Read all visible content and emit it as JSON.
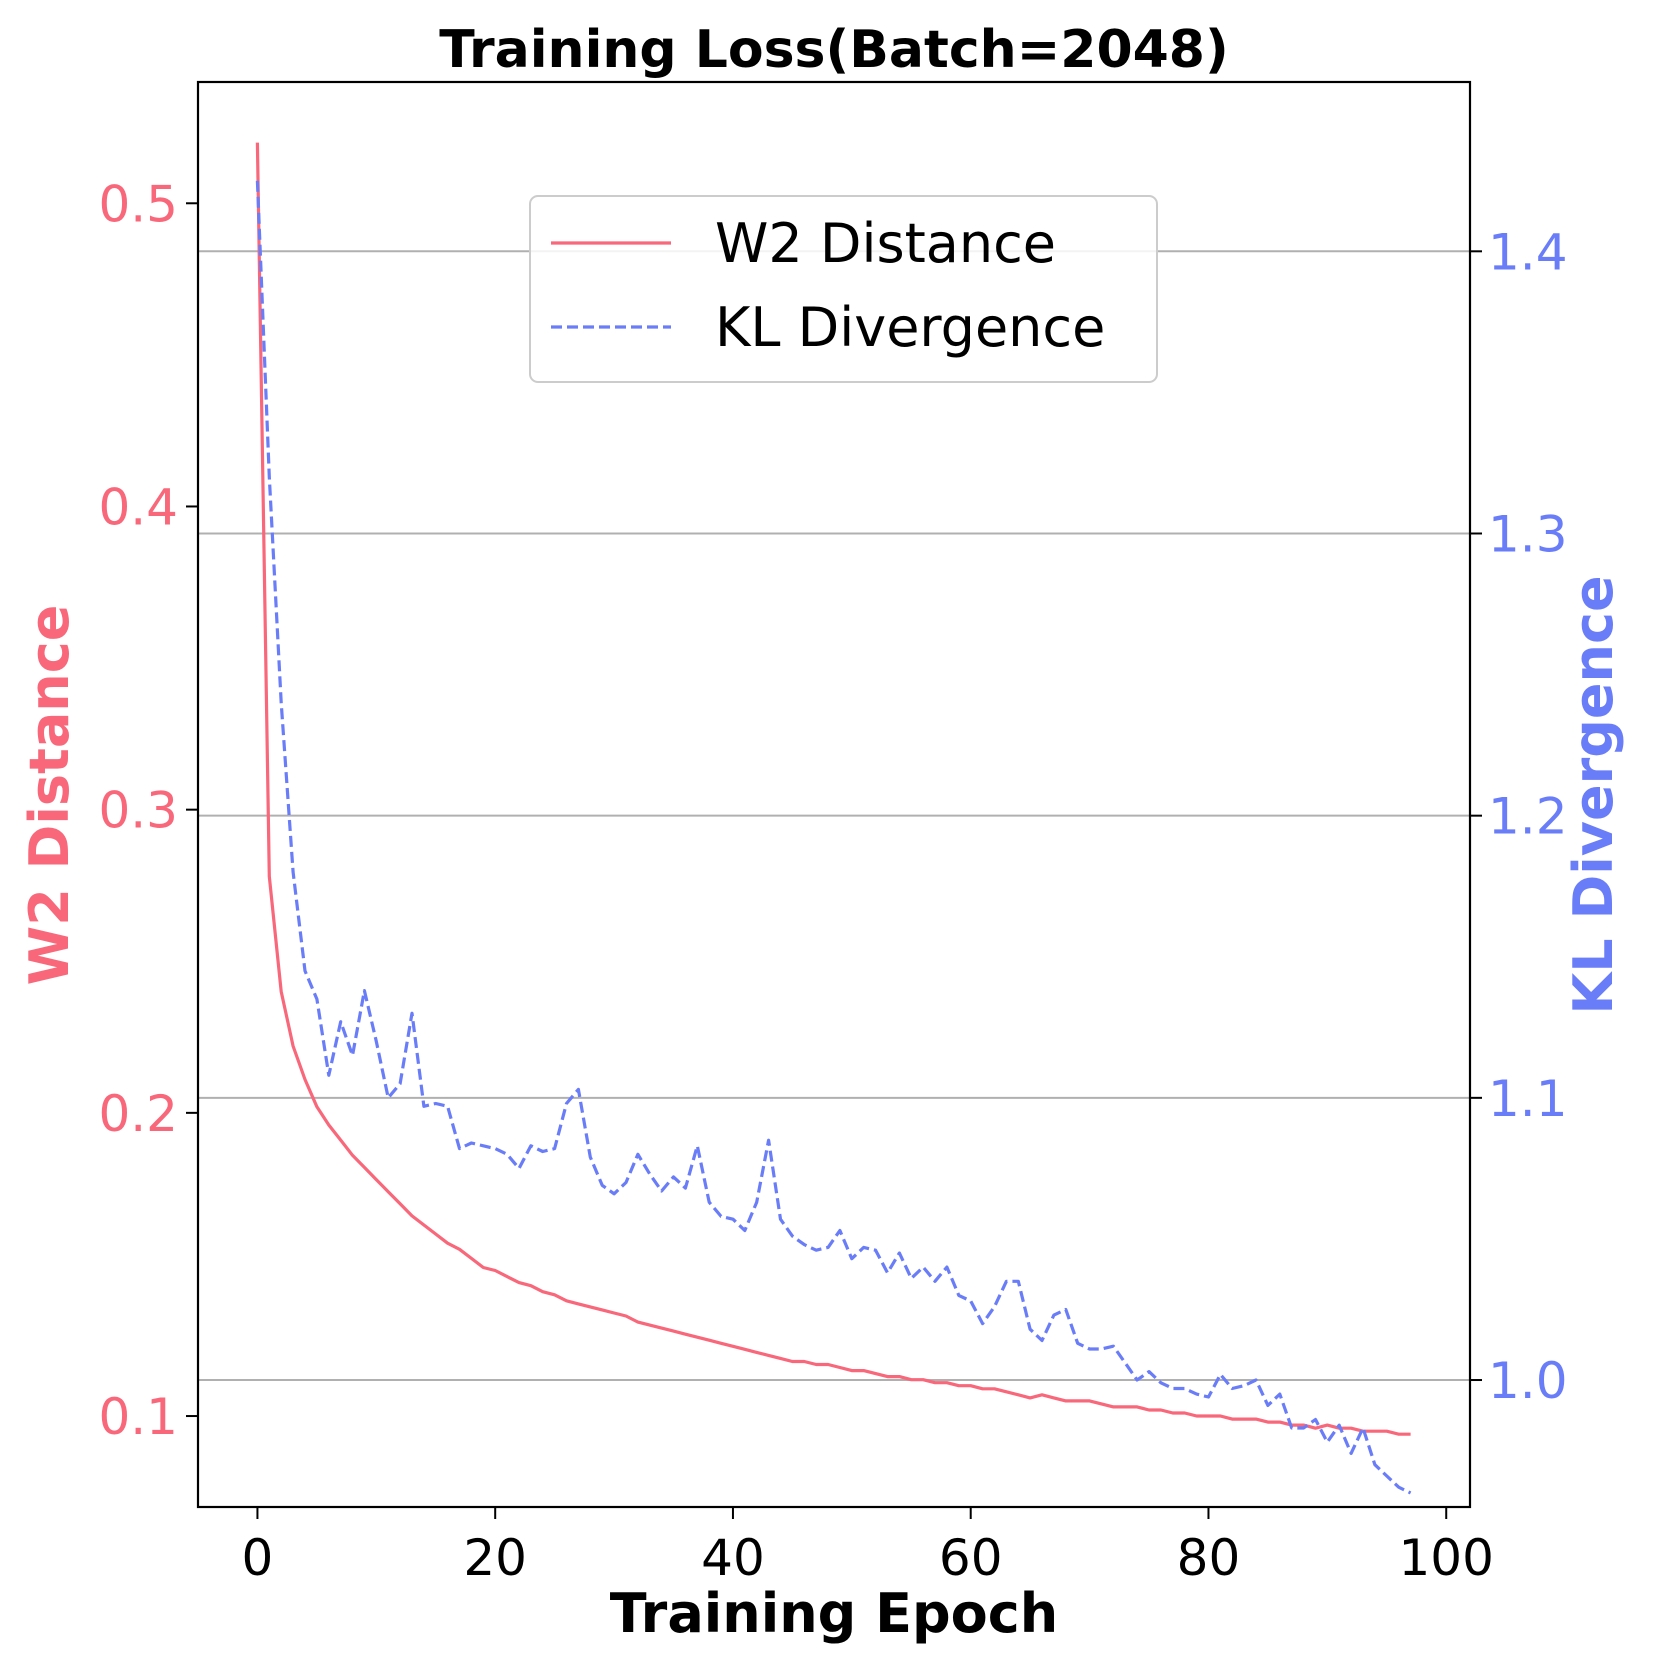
{
  "chart_data": {
    "type": "line",
    "title": "Training Loss(Batch=2048)",
    "xlabel": "Training Epoch",
    "ylabel_left": "W2 Distance",
    "ylabel_right": "KL Divergence",
    "xlim": [
      -5,
      102
    ],
    "ylim_left": [
      0.07,
      0.54
    ],
    "ylim_right": [
      0.955,
      1.46
    ],
    "x_ticks": [
      0,
      20,
      40,
      60,
      80,
      100
    ],
    "y_ticks_left": [
      0.1,
      0.2,
      0.3,
      0.4,
      0.5
    ],
    "y_ticks_right": [
      1.0,
      1.1,
      1.2,
      1.3,
      1.4
    ],
    "grid": "horizontal (right axis ticks)",
    "legend_position": "upper center",
    "colors": {
      "w2": "#f8687a",
      "kl": "#6a7df8",
      "grid": "#b0b0b0"
    },
    "series": [
      {
        "name": "W2 Distance",
        "axis": "left",
        "style": "solid",
        "x": [
          0,
          1,
          2,
          3,
          4,
          5,
          6,
          7,
          8,
          9,
          10,
          11,
          12,
          13,
          14,
          15,
          16,
          17,
          18,
          19,
          20,
          21,
          22,
          23,
          24,
          25,
          26,
          27,
          28,
          29,
          30,
          31,
          32,
          33,
          34,
          35,
          36,
          37,
          38,
          39,
          40,
          41,
          42,
          43,
          44,
          45,
          46,
          47,
          48,
          49,
          50,
          51,
          52,
          53,
          54,
          55,
          56,
          57,
          58,
          59,
          60,
          61,
          62,
          63,
          64,
          65,
          66,
          67,
          68,
          69,
          70,
          71,
          72,
          73,
          74,
          75,
          76,
          77,
          78,
          79,
          80,
          81,
          82,
          83,
          84,
          85,
          86,
          87,
          88,
          89,
          90,
          91,
          92,
          93,
          94,
          95,
          96,
          97
        ],
        "values": [
          0.52,
          0.278,
          0.24,
          0.222,
          0.211,
          0.202,
          0.196,
          0.191,
          0.186,
          0.182,
          0.178,
          0.174,
          0.17,
          0.166,
          0.163,
          0.16,
          0.157,
          0.155,
          0.152,
          0.149,
          0.148,
          0.146,
          0.144,
          0.143,
          0.141,
          0.14,
          0.138,
          0.137,
          0.136,
          0.135,
          0.134,
          0.133,
          0.131,
          0.13,
          0.129,
          0.128,
          0.127,
          0.126,
          0.125,
          0.124,
          0.123,
          0.122,
          0.121,
          0.12,
          0.119,
          0.118,
          0.118,
          0.117,
          0.117,
          0.116,
          0.115,
          0.115,
          0.114,
          0.113,
          0.113,
          0.112,
          0.112,
          0.111,
          0.111,
          0.11,
          0.11,
          0.109,
          0.109,
          0.108,
          0.107,
          0.106,
          0.107,
          0.106,
          0.105,
          0.105,
          0.105,
          0.104,
          0.103,
          0.103,
          0.103,
          0.102,
          0.102,
          0.101,
          0.101,
          0.1,
          0.1,
          0.1,
          0.099,
          0.099,
          0.099,
          0.098,
          0.098,
          0.097,
          0.097,
          0.096,
          0.097,
          0.096,
          0.096,
          0.095,
          0.095,
          0.095,
          0.094,
          0.094
        ]
      },
      {
        "name": "KL Divergence",
        "axis": "right",
        "style": "dashed",
        "x": [
          0,
          1,
          2,
          3,
          4,
          5,
          6,
          7,
          8,
          9,
          10,
          11,
          12,
          13,
          14,
          15,
          16,
          17,
          18,
          19,
          20,
          21,
          22,
          23,
          24,
          25,
          26,
          27,
          28,
          29,
          30,
          31,
          32,
          33,
          34,
          35,
          36,
          37,
          38,
          39,
          40,
          41,
          42,
          43,
          44,
          45,
          46,
          47,
          48,
          49,
          50,
          51,
          52,
          53,
          54,
          55,
          56,
          57,
          58,
          59,
          60,
          61,
          62,
          63,
          64,
          65,
          66,
          67,
          68,
          69,
          70,
          71,
          72,
          73,
          74,
          75,
          76,
          77,
          78,
          79,
          80,
          81,
          82,
          83,
          84,
          85,
          86,
          87,
          88,
          89,
          90,
          91,
          92,
          93,
          94,
          95,
          96,
          97
        ],
        "values": [
          1.425,
          1.32,
          1.24,
          1.18,
          1.145,
          1.135,
          1.108,
          1.127,
          1.115,
          1.138,
          1.12,
          1.1,
          1.105,
          1.13,
          1.097,
          1.098,
          1.097,
          1.082,
          1.084,
          1.083,
          1.082,
          1.08,
          1.075,
          1.083,
          1.081,
          1.082,
          1.098,
          1.103,
          1.079,
          1.069,
          1.066,
          1.07,
          1.08,
          1.073,
          1.067,
          1.072,
          1.068,
          1.083,
          1.063,
          1.058,
          1.057,
          1.053,
          1.063,
          1.085,
          1.057,
          1.051,
          1.048,
          1.046,
          1.047,
          1.053,
          1.043,
          1.047,
          1.046,
          1.038,
          1.045,
          1.036,
          1.04,
          1.035,
          1.04,
          1.03,
          1.028,
          1.02,
          1.026,
          1.035,
          1.035,
          1.018,
          1.014,
          1.023,
          1.025,
          1.013,
          1.011,
          1.011,
          1.012,
          1.006,
          1.0,
          1.003,
          0.999,
          0.997,
          0.997,
          0.995,
          0.994,
          1.002,
          0.997,
          0.998,
          1.0,
          0.991,
          0.995,
          0.983,
          0.983,
          0.986,
          0.978,
          0.984,
          0.974,
          0.983,
          0.97,
          0.966,
          0.962,
          0.96
        ]
      }
    ]
  }
}
